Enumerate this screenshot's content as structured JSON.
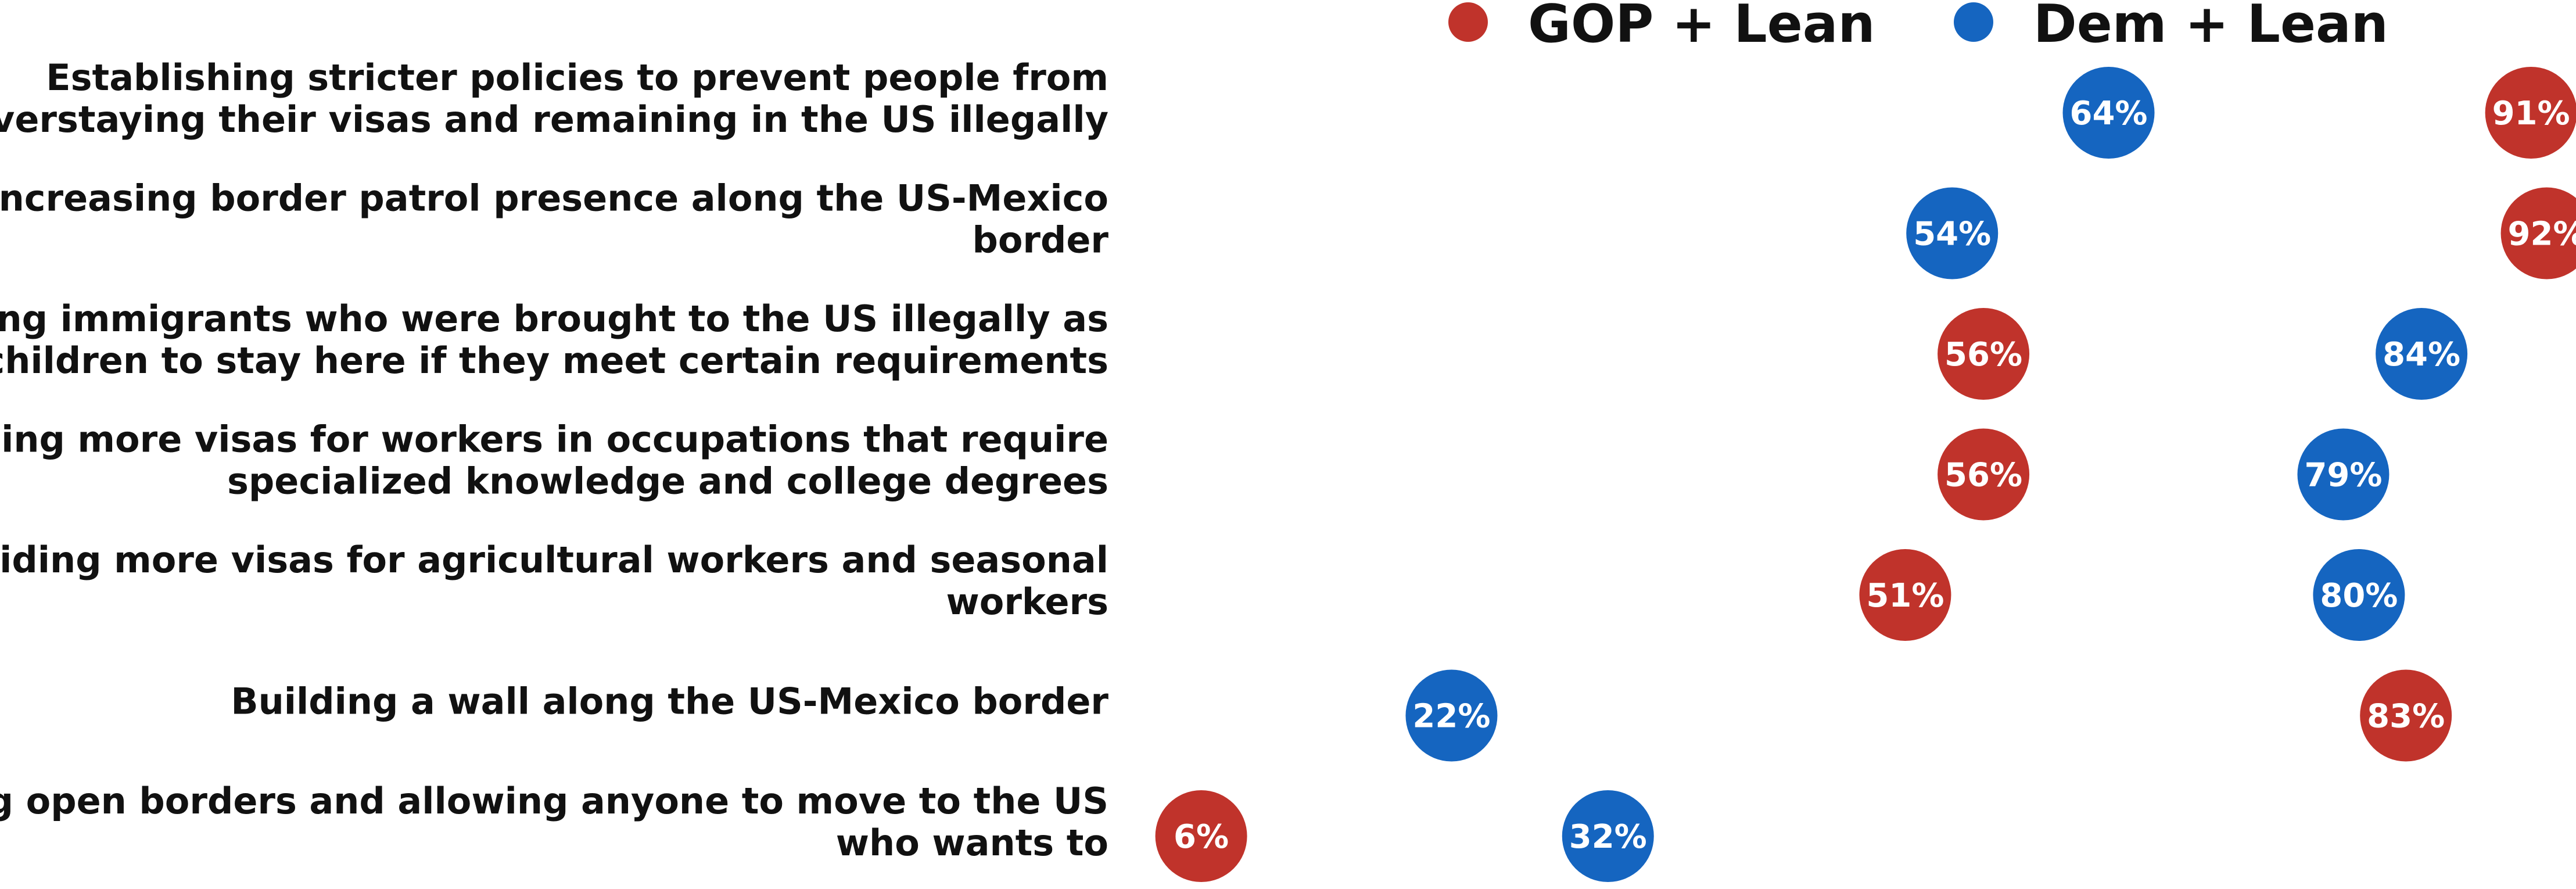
{
  "chart_data": {
    "type": "scatter",
    "title": "",
    "xlabel": "",
    "ylabel": "",
    "xlim": [
      0,
      100
    ],
    "grid": false,
    "legend_position": "top",
    "categories": [
      [
        "Establishing stricter policies to prevent people from",
        "overstaying their visas and remaining in the US illegally"
      ],
      [
        "Increasing border patrol presence along the US-Mexico",
        "border"
      ],
      [
        "Allowing immigrants who were brought to the US illegally as",
        "children to stay here if they meet certain requirements"
      ],
      [
        "Providing more visas for workers in occupations that require",
        "specialized knowledge and college degrees"
      ],
      [
        "Providing more visas for agricultural workers and seasonal",
        "workers"
      ],
      [
        "Building a wall along the US-Mexico border"
      ],
      [
        "Having open borders and allowing anyone to move to the US",
        "who wants to"
      ]
    ],
    "series": [
      {
        "name": "GOP + Lean",
        "color": "#c0332b",
        "values": [
          91,
          92,
          56,
          56,
          51,
          83,
          6
        ],
        "labels": [
          "91%",
          "92%",
          "56%",
          "56%",
          "51%",
          "83%",
          "6%"
        ]
      },
      {
        "name": "Dem + Lean",
        "color": "#1565c0",
        "values": [
          64,
          54,
          84,
          79,
          80,
          22,
          32
        ],
        "labels": [
          "64%",
          "54%",
          "84%",
          "79%",
          "80%",
          "22%",
          "32%"
        ]
      }
    ]
  }
}
